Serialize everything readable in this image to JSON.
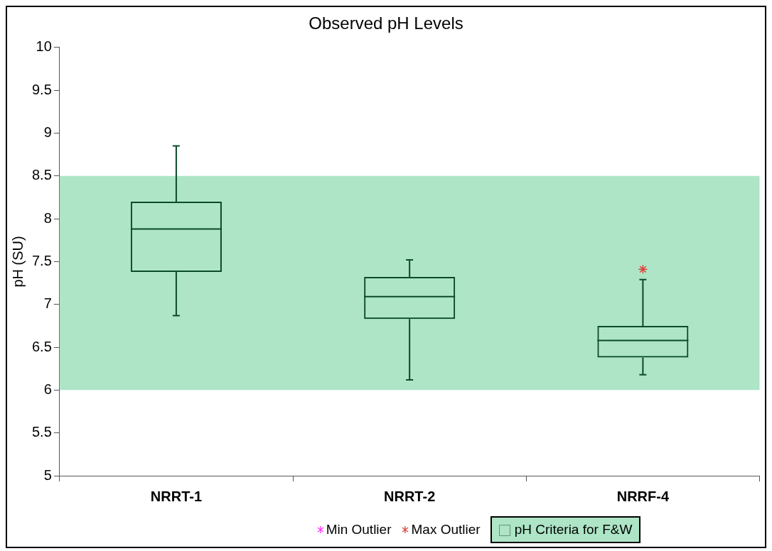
{
  "chart_data": {
    "type": "box",
    "title": "Observed pH Levels",
    "ylabel": "pH (SU)",
    "categories": [
      "NRRT-1",
      "NRRT-2",
      "NRRF-4"
    ],
    "series": [
      {
        "color": "#0b4a2a",
        "boxes": [
          {
            "low": 6.87,
            "q1": 7.38,
            "median": 7.88,
            "q3": 8.2,
            "high": 8.85
          },
          {
            "low": 6.12,
            "q1": 6.83,
            "median": 7.09,
            "q3": 7.32,
            "high": 7.52
          },
          {
            "low": 6.18,
            "q1": 6.38,
            "median": 6.58,
            "q3": 6.75,
            "high": 7.29
          }
        ]
      },
      {
        "type": "scatter",
        "name": "Min Outlier",
        "color": "#ff33ff",
        "x": [
          "NRRT-1",
          "NRRT-2",
          "NRRF-4"
        ],
        "values": [
          null,
          null,
          null
        ]
      },
      {
        "type": "scatter",
        "name": "Max Outlier",
        "color": "#e0403a",
        "x": [
          "NRRT-1",
          "NRRT-2",
          "NRRF-4"
        ],
        "values": [
          null,
          null,
          7.41
        ]
      }
    ],
    "ylim": [
      5,
      10
    ],
    "yticks": [
      5,
      5.5,
      6,
      6.5,
      7,
      7.5,
      8,
      8.5,
      9,
      9.5,
      10
    ],
    "bands": [
      {
        "axis": "y",
        "from": 6,
        "to": 8.5,
        "label": "pH Criteria for F&W",
        "color": "#ade5c6"
      }
    ],
    "legend": "bottom",
    "marker": "cross",
    "grid": false
  }
}
